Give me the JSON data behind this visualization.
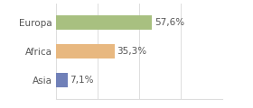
{
  "categories": [
    "Europa",
    "Africa",
    "Asia"
  ],
  "values": [
    57.6,
    35.3,
    7.1
  ],
  "bar_colors": [
    "#a8c080",
    "#e8b880",
    "#7080b8"
  ],
  "labels": [
    "57,6%",
    "35,3%",
    "7,1%"
  ],
  "xlim": [
    0,
    100
  ],
  "background_color": "#ffffff",
  "bar_height": 0.5,
  "label_fontsize": 7.5,
  "category_fontsize": 7.5,
  "grid_color": "#dddddd",
  "text_color": "#555555"
}
